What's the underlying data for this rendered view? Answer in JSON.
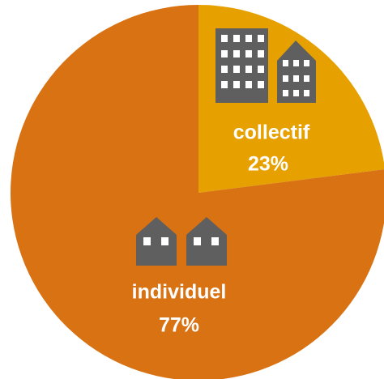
{
  "chart_data": {
    "type": "pie",
    "categories": [
      "collectif",
      "individuel"
    ],
    "values": [
      23,
      77
    ],
    "value_labels": [
      "23%",
      "77%"
    ],
    "colors": [
      "#E6A100",
      "#D87213"
    ]
  }
}
